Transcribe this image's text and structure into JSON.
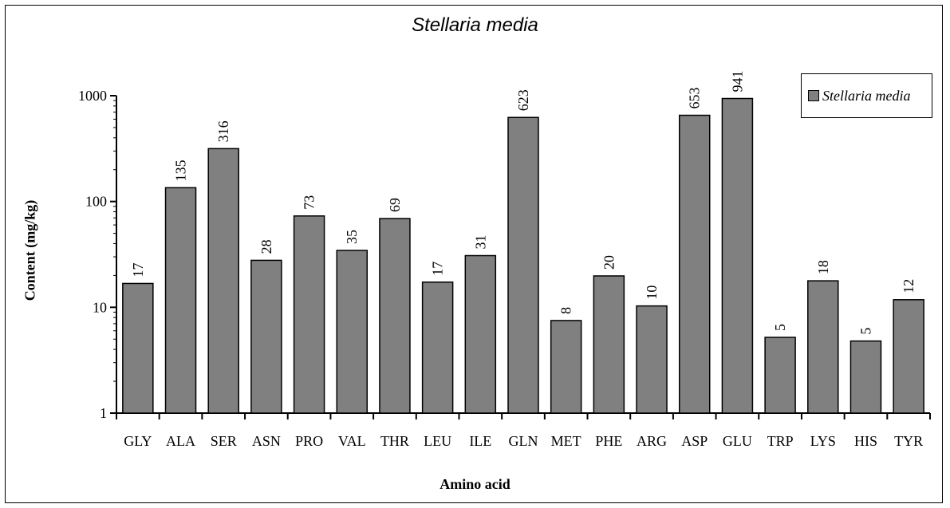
{
  "chart_data": {
    "type": "bar",
    "title": "Stellaria media",
    "xlabel": "Amino acid",
    "ylabel": "Content (mg/kg)",
    "y_scale": "log",
    "ylim": [
      1,
      1000
    ],
    "y_ticks": [
      "1",
      "10",
      "100",
      "1000"
    ],
    "y_tick_values": [
      1,
      10,
      100,
      1000
    ],
    "legend_position": "top-right",
    "categories": [
      "GLY",
      "ALA",
      "SER",
      "ASN",
      "PRO",
      "VAL",
      "THR",
      "LEU",
      "ILE",
      "GLN",
      "MET",
      "PHE",
      "ARG",
      "ASP",
      "GLU",
      "TRP",
      "LYS",
      "HIS",
      "TYR"
    ],
    "series": [
      {
        "name": "Stellaria media",
        "color": "#808080",
        "values": [
          17,
          135,
          316,
          28,
          73,
          35,
          69,
          17,
          31,
          623,
          8,
          20,
          10,
          653,
          941,
          5,
          18,
          5,
          12
        ]
      }
    ],
    "plot_values": [
      16.8,
      135,
      316,
      27.8,
      73,
      34.5,
      69,
      17.3,
      30.8,
      623,
      7.5,
      19.8,
      10.3,
      653,
      941,
      5.2,
      17.8,
      4.8,
      11.8
    ]
  }
}
